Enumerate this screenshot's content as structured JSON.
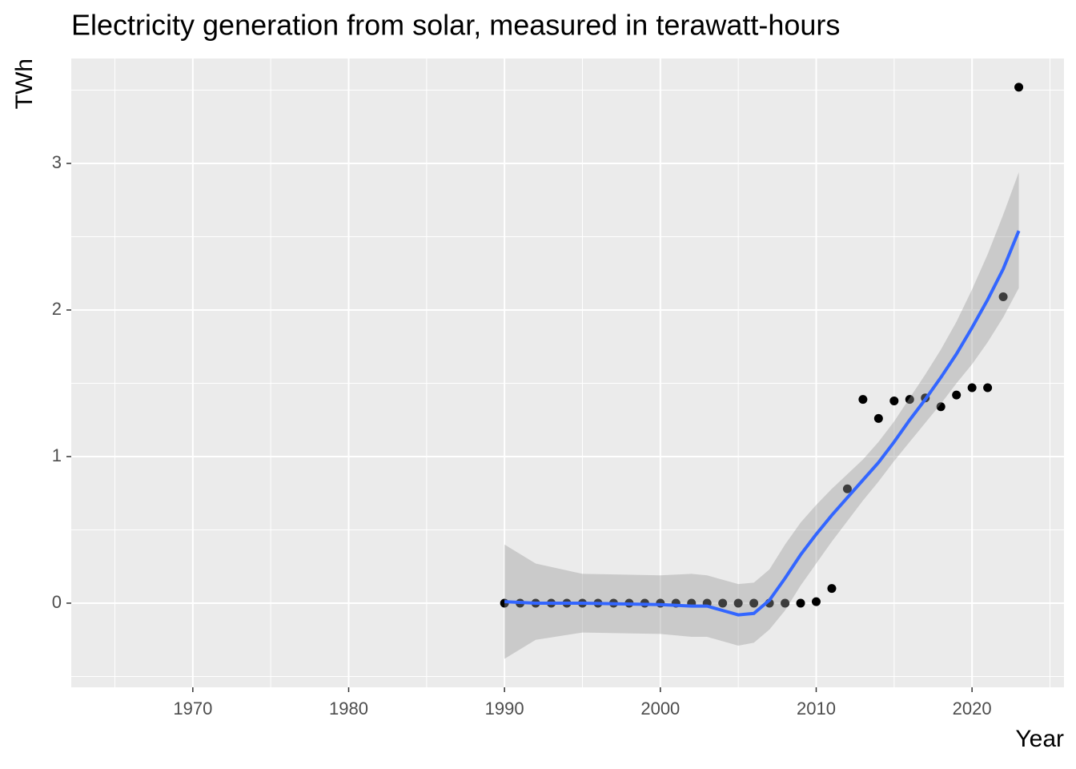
{
  "chart_data": {
    "type": "scatter",
    "title": "Electricity generation from solar, measured in terawatt-hours",
    "x_label": "Year",
    "y_label": "TWh",
    "x": [
      1990,
      1991,
      1992,
      1993,
      1994,
      1995,
      1996,
      1997,
      1998,
      1999,
      2000,
      2001,
      2002,
      2003,
      2004,
      2005,
      2006,
      2007,
      2008,
      2009,
      2010,
      2011,
      2012,
      2013,
      2014,
      2015,
      2016,
      2017,
      2018,
      2019,
      2020,
      2021,
      2022,
      2023
    ],
    "values": [
      0,
      0,
      0,
      0,
      0,
      0,
      0,
      0,
      0,
      0,
      0,
      0,
      0,
      0,
      0,
      0,
      0,
      0,
      0,
      0,
      0.01,
      0.1,
      0.78,
      1.39,
      1.26,
      1.38,
      1.39,
      1.4,
      1.34,
      1.42,
      1.47,
      1.47,
      2.09,
      3.52
    ],
    "color": "#000000",
    "smooth": {
      "color": "#3366ff",
      "band_color": "#999999",
      "x": [
        1990,
        1992,
        1995,
        2000,
        2002,
        2003,
        2004,
        2005,
        2006,
        2007,
        2008,
        2009,
        2010,
        2011,
        2012,
        2013,
        2014,
        2015,
        2016,
        2017,
        2018,
        2019,
        2020,
        2021,
        2022,
        2023
      ],
      "values": [
        0.01,
        0,
        0,
        -0.01,
        -0.02,
        -0.02,
        -0.05,
        -0.08,
        -0.07,
        0.02,
        0.17,
        0.33,
        0.47,
        0.6,
        0.72,
        0.84,
        0.96,
        1.1,
        1.25,
        1.39,
        1.54,
        1.7,
        1.88,
        2.07,
        2.28,
        2.54
      ],
      "lower": [
        -0.38,
        -0.25,
        -0.2,
        -0.21,
        -0.23,
        -0.23,
        -0.26,
        -0.29,
        -0.27,
        -0.18,
        -0.05,
        0.12,
        0.27,
        0.42,
        0.56,
        0.7,
        0.83,
        0.97,
        1.1,
        1.23,
        1.36,
        1.5,
        1.63,
        1.78,
        1.95,
        2.15
      ],
      "upper": [
        0.4,
        0.27,
        0.2,
        0.19,
        0.2,
        0.19,
        0.16,
        0.13,
        0.14,
        0.23,
        0.4,
        0.55,
        0.67,
        0.78,
        0.88,
        0.98,
        1.1,
        1.24,
        1.4,
        1.56,
        1.73,
        1.92,
        2.14,
        2.38,
        2.65,
        2.94
      ]
    },
    "xlim": [
      1962.2,
      2025.9
    ],
    "ylim": [
      -0.574,
      3.716
    ],
    "xticks": [
      1970,
      1980,
      1990,
      2000,
      2010,
      2020
    ],
    "yticks": [
      0,
      1,
      2,
      3
    ],
    "xminorticks": [
      1965,
      1975,
      1985,
      1995,
      2005,
      2015,
      2025
    ],
    "yminorticks": [
      -0.5,
      0.5,
      1.5,
      2.5,
      3.5
    ],
    "grid": true
  }
}
